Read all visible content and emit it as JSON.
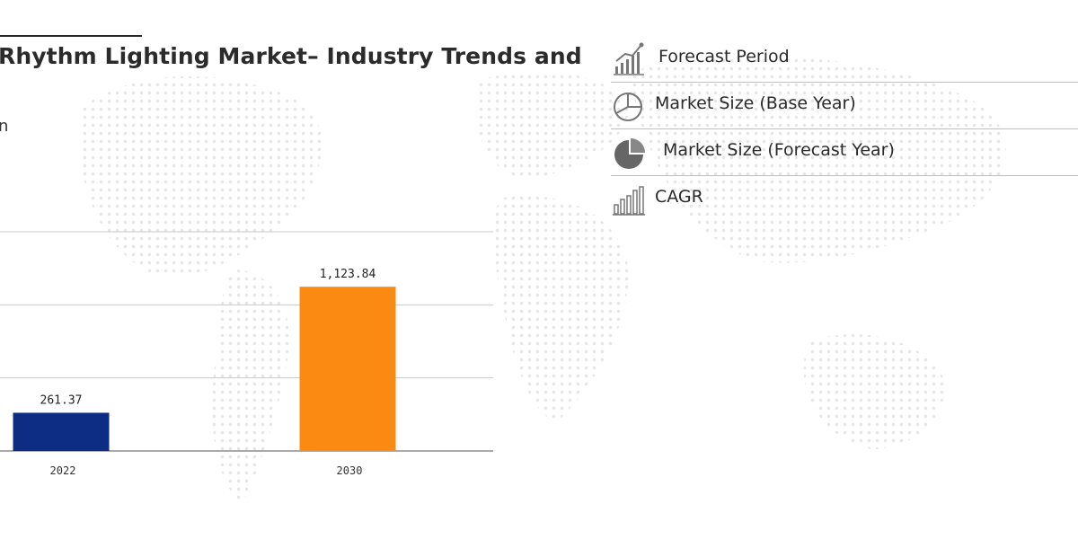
{
  "header": {
    "title": "Rhythm Lighting Market– Industry Trends and",
    "subtitle": "n"
  },
  "chart_data": {
    "type": "bar",
    "categories": [
      "2022",
      "2030"
    ],
    "values": [
      261.37,
      1123.84
    ],
    "value_labels": [
      "261.37",
      "1,123.84"
    ],
    "colors": [
      "#0c2d83",
      "#fb8a12"
    ],
    "ylim": [
      0,
      1500
    ],
    "grid": true
  },
  "panel": {
    "items": [
      {
        "label": "Forecast Period",
        "icon": "growth-chart-icon"
      },
      {
        "label": "Market Size (Base Year)",
        "icon": "pie-outline-icon"
      },
      {
        "label": "Market Size (Forecast Year)",
        "icon": "pie-filled-icon"
      },
      {
        "label": "CAGR",
        "icon": "bar-chart-icon"
      }
    ]
  },
  "colors": {
    "accent_orange": "#fb8a12",
    "accent_navy": "#0c2d83",
    "map_dot": "#e6e6e6"
  }
}
